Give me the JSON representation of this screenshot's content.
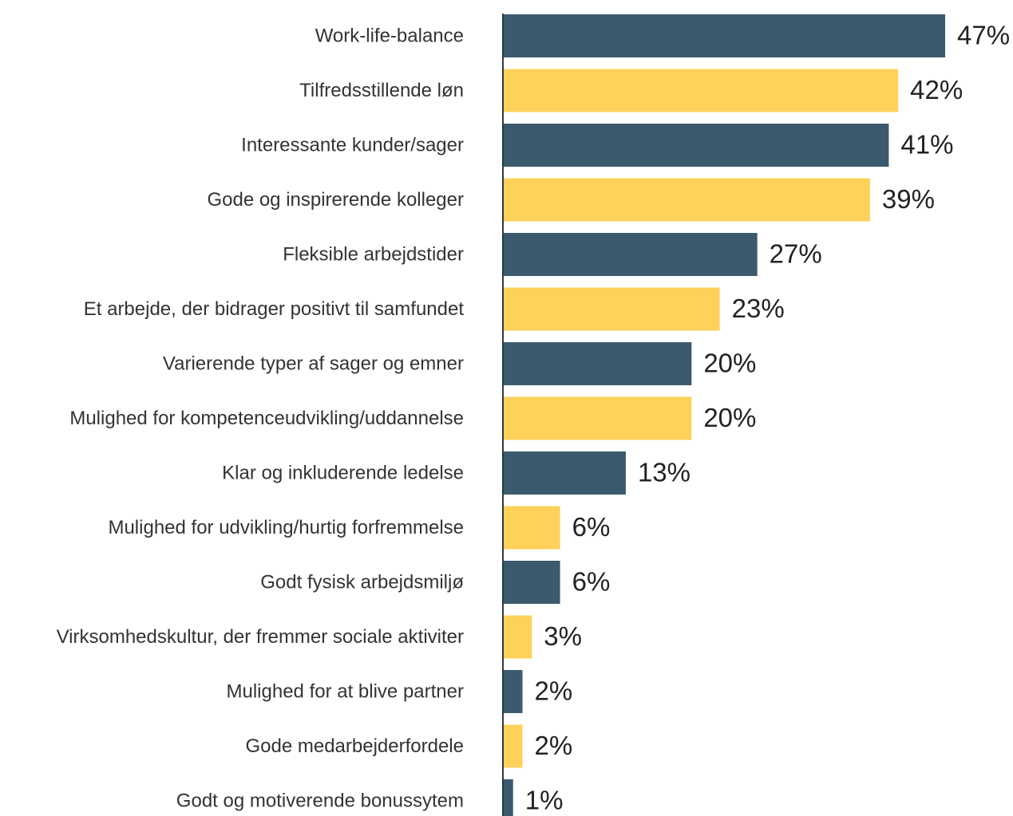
{
  "chart_data": {
    "type": "bar",
    "orientation": "horizontal",
    "categories": [
      "Work-life-balance",
      "Tilfredsstillende løn",
      "Interessante kunder/sager",
      "Gode og inspirerende kolleger",
      "Fleksible arbejdstider",
      "Et arbejde, der bidrager positivt til samfundet",
      "Varierende typer af sager og emner",
      "Mulighed for kompetenceudvikling/uddannelse",
      "Klar og inkluderende ledelse",
      "Mulighed for udvikling/hurtig forfremmelse",
      "Godt fysisk arbejdsmiljø",
      "Virksomhedskultur, der fremmer sociale aktiviter",
      "Mulighed for at blive partner",
      "Gode medarbejderfordele",
      "Godt og motiverende bonussytem"
    ],
    "values": [
      47,
      42,
      41,
      39,
      27,
      23,
      20,
      20,
      13,
      6,
      6,
      3,
      2,
      2,
      1
    ],
    "value_labels": [
      "47%",
      "42%",
      "41%",
      "39%",
      "27%",
      "23%",
      "20%",
      "20%",
      "13%",
      "6%",
      "6%",
      "3%",
      "2%",
      "2%",
      "1%"
    ],
    "colors": [
      "#3b5a6e",
      "#fdd15a",
      "#3b5a6e",
      "#fdd15a",
      "#3b5a6e",
      "#fdd15a",
      "#3b5a6e",
      "#fdd15a",
      "#3b5a6e",
      "#fdd15a",
      "#3b5a6e",
      "#fdd15a",
      "#3b5a6e",
      "#fdd15a",
      "#3b5a6e"
    ]
  }
}
